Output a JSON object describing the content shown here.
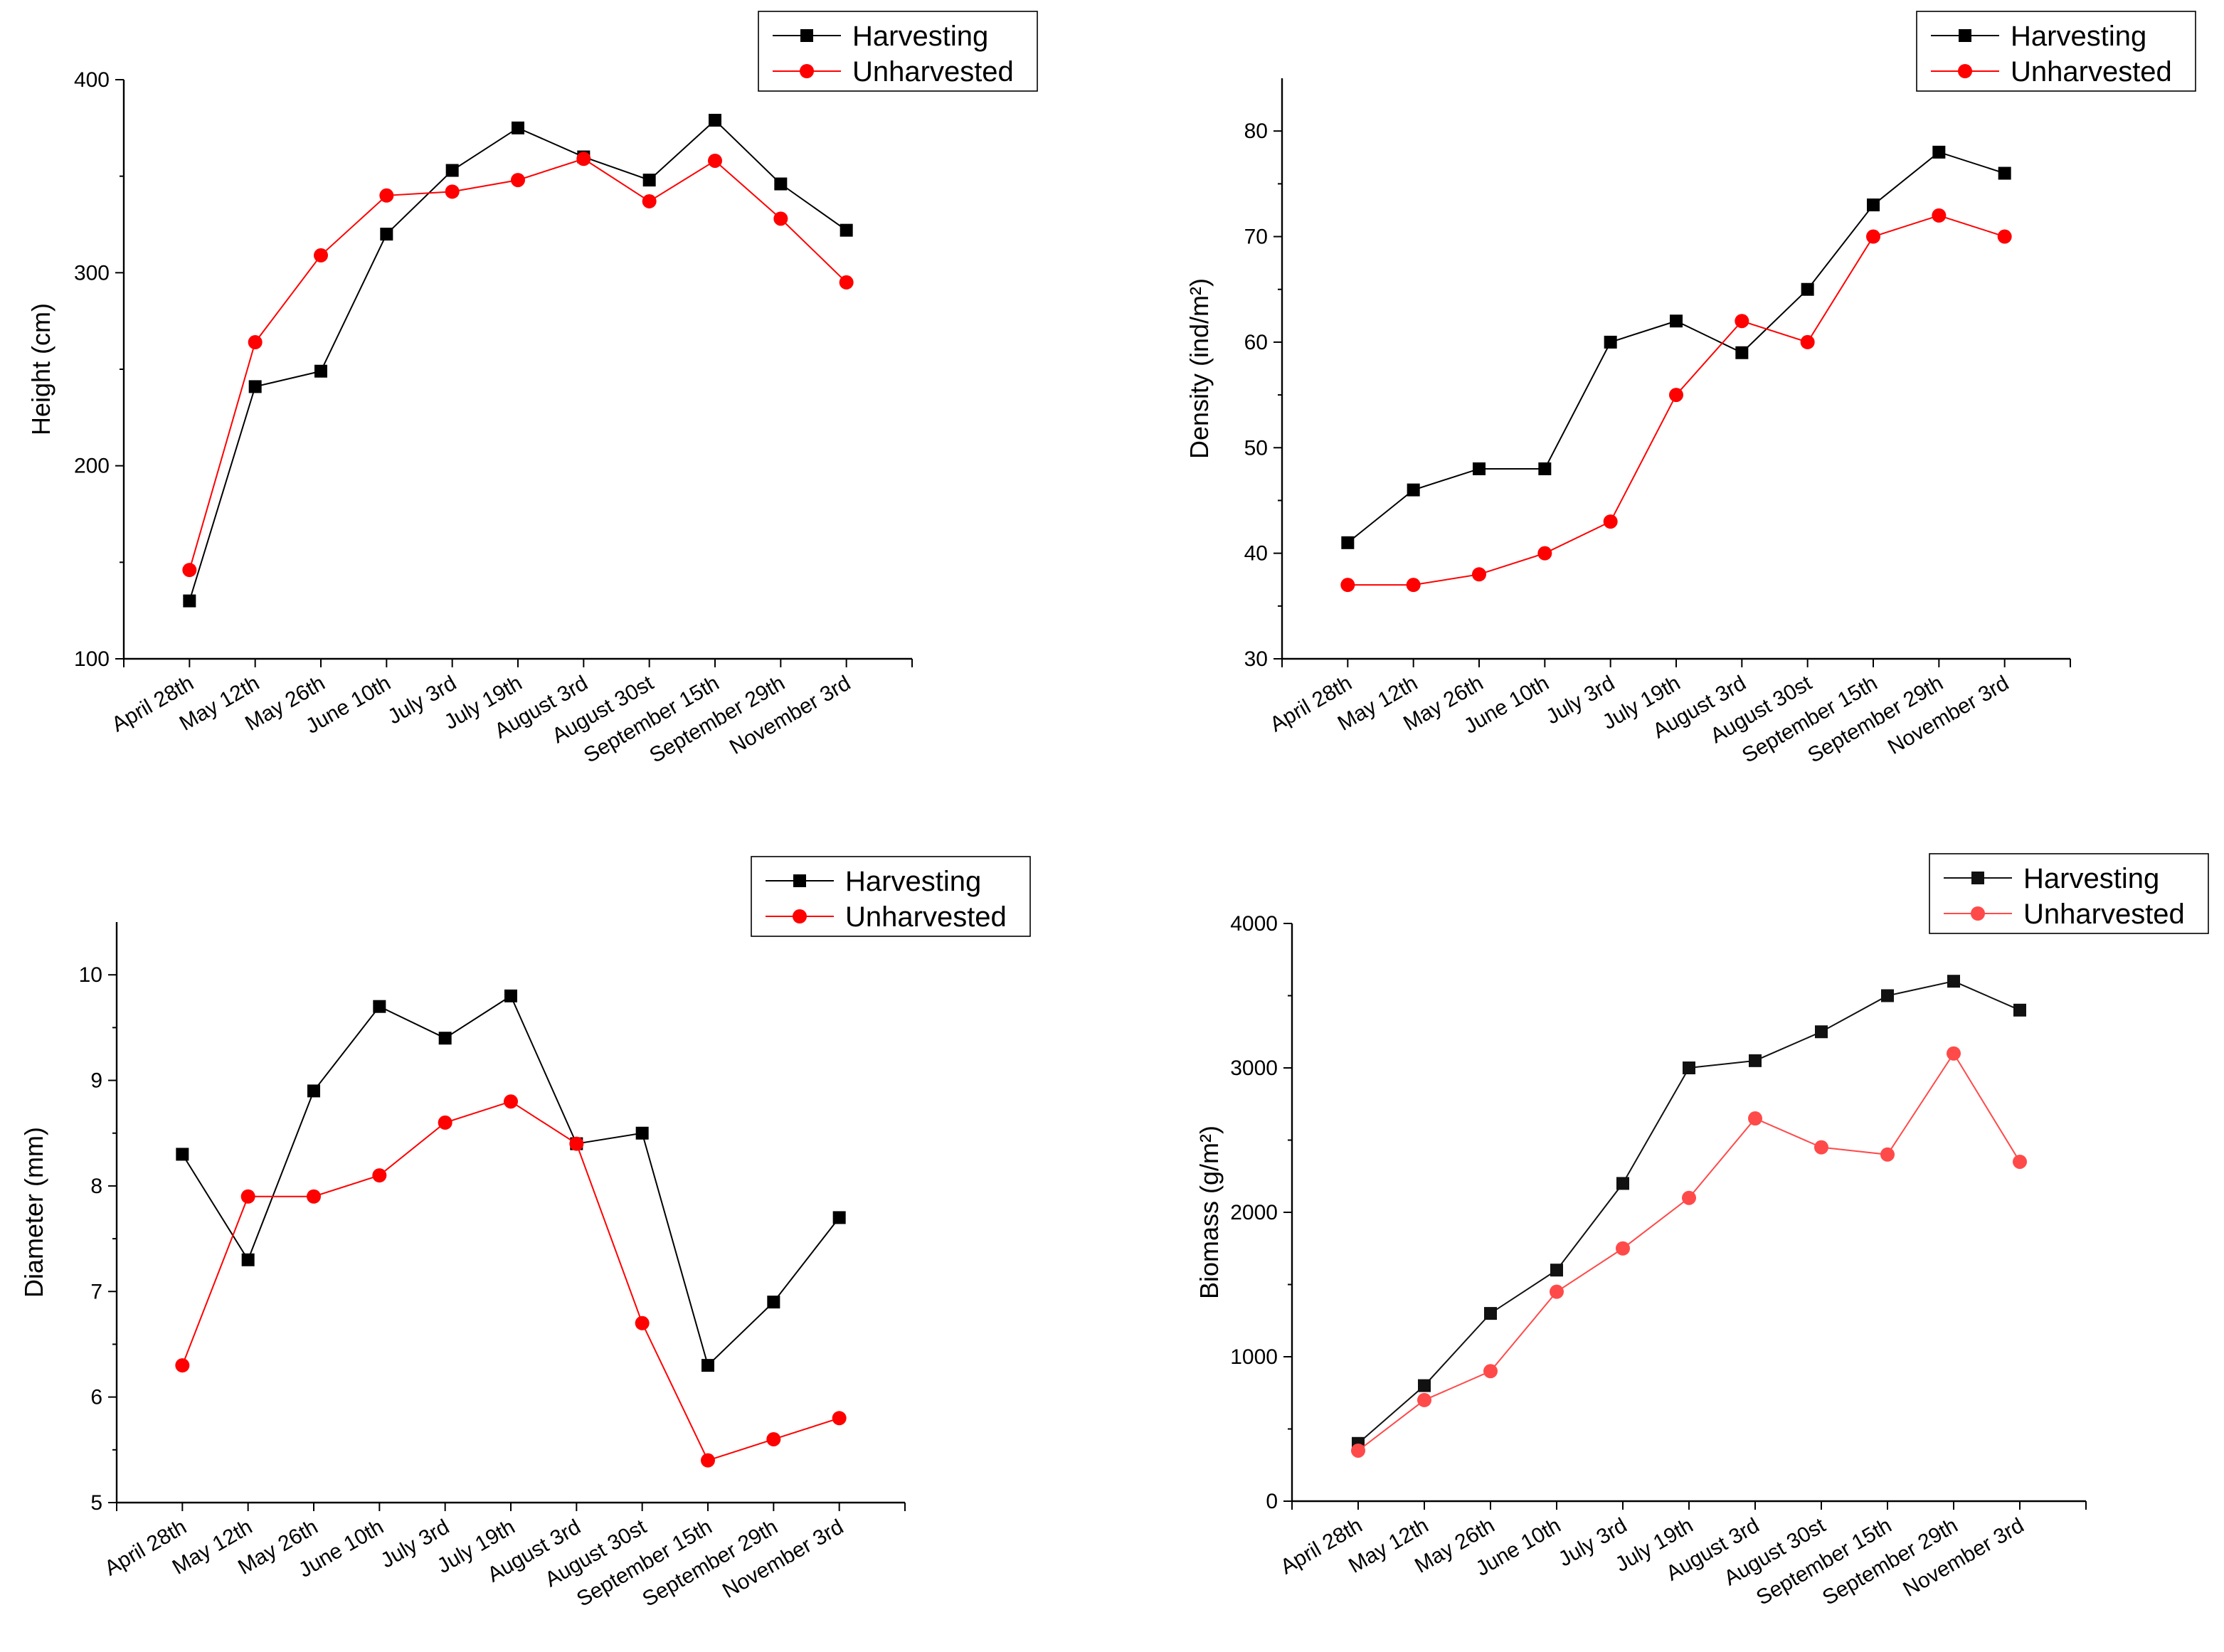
{
  "chart_data": [
    {
      "type": "line",
      "ylabel": "Height (cm)",
      "categories": [
        "April 28th",
        "May 12th",
        "May 26th",
        "June 10th",
        "July 3rd",
        "July 19th",
        "August 3rd",
        "August 30st",
        "September 15th",
        "September 29th",
        "November 3rd"
      ],
      "series": [
        {
          "name": "Harvesting",
          "color": "#000000",
          "marker": "square",
          "values": [
            130,
            241,
            249,
            320,
            353,
            375,
            360,
            348,
            379,
            346,
            322
          ]
        },
        {
          "name": "Unharvested",
          "color": "#ff0000",
          "marker": "circle",
          "values": [
            146,
            264,
            309,
            340,
            342,
            348,
            359,
            337,
            358,
            328,
            295
          ]
        }
      ],
      "ylim": [
        100,
        400
      ],
      "yticks": [
        100,
        200,
        300,
        400
      ],
      "legend": "upper right"
    },
    {
      "type": "line",
      "ylabel": "Density (ind/m²)",
      "categories": [
        "April 28th",
        "May 12th",
        "May 26th",
        "June 10th",
        "July 3rd",
        "July 19th",
        "August 3rd",
        "August 30st",
        "September 15th",
        "September 29th",
        "November 3rd"
      ],
      "series": [
        {
          "name": "Harvesting",
          "color": "#000000",
          "marker": "square",
          "values": [
            41,
            46,
            48,
            48,
            60,
            62,
            59,
            65,
            73,
            78,
            76
          ]
        },
        {
          "name": "Unharvested",
          "color": "#ff0000",
          "marker": "circle",
          "values": [
            37,
            37,
            38,
            40,
            43,
            55,
            62,
            60,
            70,
            72,
            70
          ]
        }
      ],
      "ylim": [
        30,
        85
      ],
      "yticks": [
        30,
        40,
        50,
        60,
        70,
        80
      ],
      "legend": "upper right"
    },
    {
      "type": "line",
      "ylabel": "Diameter (mm)",
      "categories": [
        "April 28th",
        "May 12th",
        "May 26th",
        "June 10th",
        "July 3rd",
        "July 19th",
        "August 3rd",
        "August 30st",
        "September 15th",
        "September 29th",
        "November 3rd"
      ],
      "series": [
        {
          "name": "Harvesting",
          "color": "#000000",
          "marker": "square",
          "values": [
            8.3,
            7.3,
            8.9,
            9.7,
            9.4,
            9.8,
            8.4,
            8.5,
            6.3,
            6.9,
            7.7
          ]
        },
        {
          "name": "Unharvested",
          "color": "#ff0000",
          "marker": "circle",
          "values": [
            6.3,
            7.9,
            7.9,
            8.1,
            8.6,
            8.8,
            8.4,
            6.7,
            5.4,
            5.6,
            5.8
          ]
        }
      ],
      "ylim": [
        5,
        10.5
      ],
      "yticks": [
        5,
        6,
        7,
        8,
        9,
        10
      ],
      "legend": "upper right"
    },
    {
      "type": "line",
      "ylabel": "Biomass (g/m²)",
      "categories": [
        "April 28th",
        "May 12th",
        "May 26th",
        "June 10th",
        "July 3rd",
        "July 19th",
        "August 3rd",
        "August 30st",
        "September 15th",
        "September 29th",
        "November 3rd"
      ],
      "series": [
        {
          "name": "Harvesting",
          "color": "#111111",
          "marker": "square",
          "values": [
            400,
            800,
            1300,
            1600,
            2200,
            3000,
            3050,
            3250,
            3500,
            3600,
            3400
          ]
        },
        {
          "name": "Unharvested",
          "color": "#ff4a4a",
          "marker": "circle",
          "values": [
            350,
            700,
            900,
            1450,
            1750,
            2100,
            2650,
            2450,
            2400,
            3100,
            2350
          ]
        }
      ],
      "ylim": [
        0,
        4000
      ],
      "yticks": [
        0,
        1000,
        2000,
        3000,
        4000
      ],
      "legend": "upper right"
    }
  ]
}
